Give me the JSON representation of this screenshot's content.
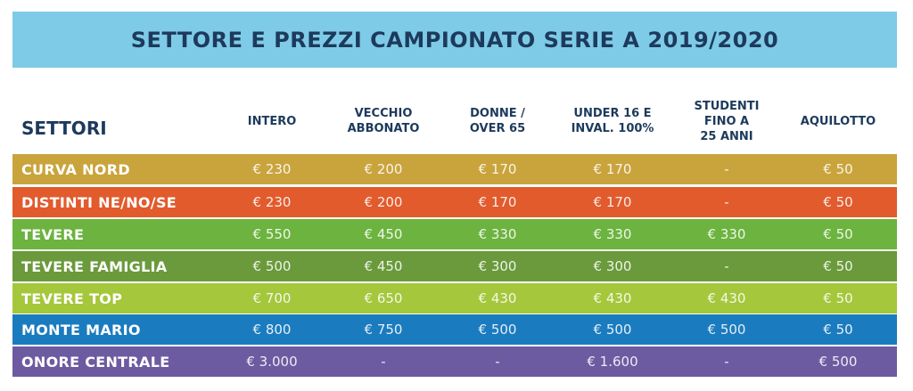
{
  "header": {
    "title": "SETTORE E PREZZI CAMPIONATO SERIE A 2019/2020"
  },
  "table": {
    "columns": [
      "SETTORI",
      "INTERO",
      "VECCHIO\nABBONATO",
      "DONNE /\nOVER 65",
      "UNDER 16 E\nINVAL. 100%",
      "STUDENTI\nFINO A\n25 ANNI",
      "AQUILOTTO"
    ],
    "rows": [
      [
        "CURVA NORD",
        "€ 230",
        "€ 200",
        "€ 170",
        "€ 170",
        "-",
        "€ 50"
      ],
      [
        "DISTINTI NE/NO/SE",
        "€ 230",
        "€ 200",
        "€ 170",
        "€ 170",
        "-",
        "€ 50"
      ],
      [
        "TEVERE",
        "€ 550",
        "€ 450",
        "€ 330",
        "€ 330",
        "€ 330",
        "€ 50"
      ],
      [
        "TEVERE FAMIGLIA",
        "€ 500",
        "€ 450",
        "€ 300",
        "€ 300",
        "-",
        "€ 50"
      ],
      [
        "TEVERE TOP",
        "€ 700",
        "€ 650",
        "€ 430",
        "€ 430",
        "€ 430",
        "€ 50"
      ],
      [
        "MONTE MARIO",
        "€ 800",
        "€ 750",
        "€ 500",
        "€ 500",
        "€ 500",
        "€ 50"
      ],
      [
        "ONORE CENTRALE",
        "€ 3.000",
        "-",
        "-",
        "€ 1.600",
        "-",
        "€ 500"
      ]
    ]
  }
}
